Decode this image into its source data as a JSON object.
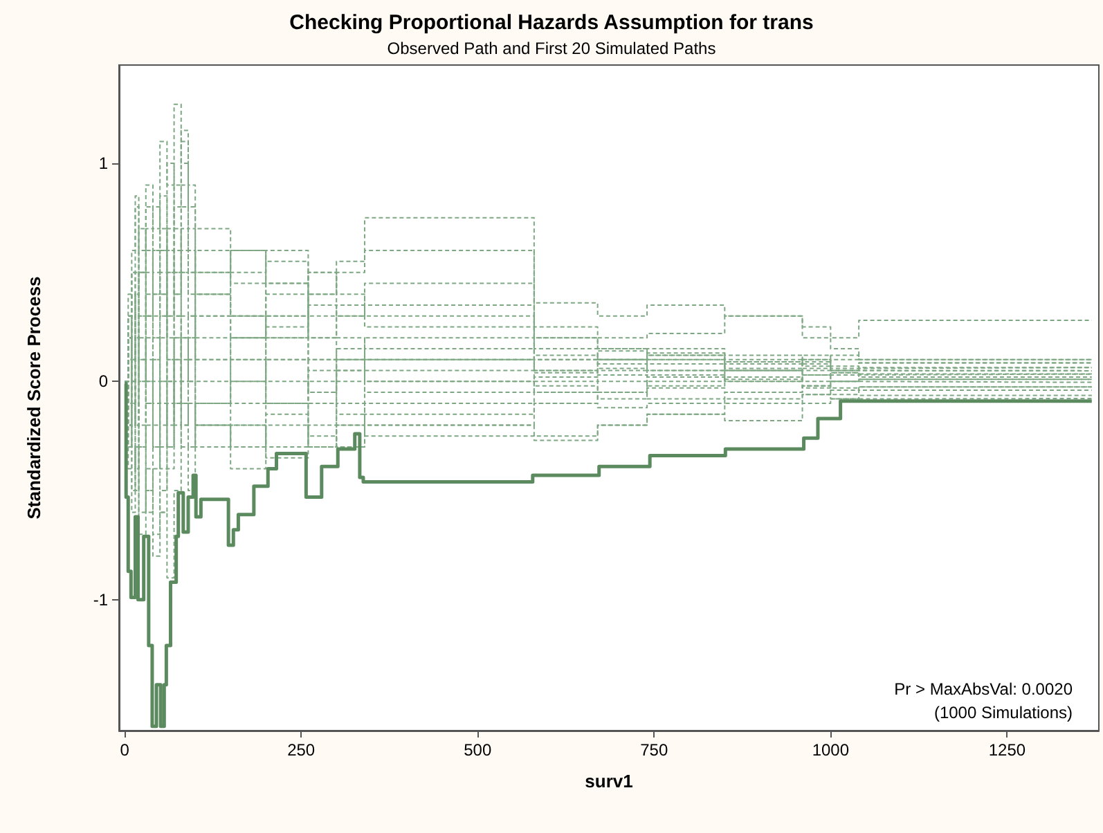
{
  "chart_data": {
    "type": "step",
    "title": "Checking Proportional Hazards Assumption for trans",
    "subtitle": "Observed Path and First 20 Simulated Paths",
    "xlabel": "surv1",
    "ylabel": "Standardized Score Process",
    "annotations": [
      "Pr > MaxAbsVal: 0.0020",
      "(1000 Simulations)"
    ],
    "x": [
      0,
      5,
      10,
      15,
      20,
      30,
      40,
      50,
      60,
      70,
      80,
      90,
      100,
      150,
      200,
      260,
      300,
      340,
      580,
      670,
      740,
      850,
      960,
      1000,
      1040,
      1370
    ],
    "series": [
      {
        "color": "#7ea883",
        "line_style": "dashed",
        "values": [
          0,
          0.3,
          0.5,
          0.8,
          0.6,
          0.9,
          0.7,
          1.1,
          0.9,
          1.27,
          1.0,
          0.6,
          0.5,
          0.6,
          0.45,
          0.5,
          0.3,
          0.45,
          0.36,
          0.3,
          0.35,
          0.3,
          0.25,
          0.2,
          0.28,
          0.28
        ]
      },
      {
        "color": "#7ea883",
        "line_style": "dashed",
        "values": [
          0,
          -0.2,
          -0.5,
          -0.3,
          -0.6,
          -0.4,
          -0.7,
          -0.5,
          -0.3,
          0.1,
          0.3,
          0.2,
          0.4,
          0.3,
          0.2,
          0.1,
          0.15,
          0.1,
          0.12,
          0.1,
          0.15,
          0.12,
          0.08,
          0.12,
          0.1,
          0.1
        ]
      },
      {
        "color": "#7ea883",
        "line_style": "dashed",
        "values": [
          0,
          0.2,
          0.4,
          0.1,
          0.3,
          0.6,
          0.4,
          0.7,
          0.5,
          0.9,
          1.15,
          0.8,
          0.3,
          0.2,
          0.3,
          0.1,
          0.05,
          0.2,
          0.1,
          0.14,
          0.1,
          0.05,
          0.09,
          0.05,
          0.085,
          0.085
        ]
      },
      {
        "color": "#7ea883",
        "line_style": "dashed",
        "values": [
          0,
          -0.3,
          -0.1,
          -0.4,
          -0.2,
          -0.5,
          -0.8,
          -0.6,
          -0.9,
          -0.5,
          -0.2,
          -0.3,
          -0.1,
          0.0,
          -0.1,
          0.05,
          0.0,
          -0.05,
          0.02,
          0.05,
          0.08,
          0.06,
          0.1,
          0.06,
          0.064,
          0.064
        ]
      },
      {
        "color": "#7ea883",
        "line_style": "dashed",
        "values": [
          0,
          0.1,
          -0.2,
          0.2,
          0.5,
          0.3,
          0.6,
          0.85,
          0.6,
          0.4,
          0.7,
          0.5,
          0.6,
          0.45,
          0.55,
          0.3,
          0.35,
          0.25,
          0.2,
          0.15,
          0.12,
          0.1,
          0.07,
          0.05,
          0.049,
          0.049
        ]
      },
      {
        "color": "#7ea883",
        "line_style": "dashed",
        "values": [
          0,
          -0.1,
          0.2,
          -0.1,
          0.1,
          -0.2,
          0.1,
          -0.3,
          -0.1,
          0.2,
          0.0,
          0.3,
          0.1,
          0.2,
          0.0,
          -0.1,
          0.1,
          0.0,
          -0.05,
          0.0,
          0.03,
          0.0,
          0.05,
          0.03,
          0.034,
          0.034
        ]
      },
      {
        "color": "#7ea883",
        "line_style": "dashed",
        "values": [
          0,
          0.4,
          0.6,
          0.85,
          0.5,
          0.7,
          0.3,
          0.5,
          0.2,
          0.4,
          0.6,
          0.4,
          0.2,
          0.1,
          0.25,
          0.4,
          0.5,
          0.6,
          0.2,
          0.15,
          0.1,
          0.05,
          0.0,
          0.04,
          0.02,
          0.02
        ]
      },
      {
        "color": "#7ea883",
        "line_style": "dashed",
        "values": [
          0,
          -0.4,
          -0.6,
          -0.3,
          -0.7,
          -0.5,
          -0.2,
          -0.4,
          0.0,
          -0.2,
          0.1,
          -0.1,
          -0.3,
          -0.2,
          -0.35,
          -0.2,
          -0.3,
          -0.15,
          -0.1,
          -0.05,
          0.0,
          0.02,
          -0.03,
          0.0,
          0.01,
          0.01
        ]
      },
      {
        "color": "#7ea883",
        "line_style": "dashed",
        "values": [
          0,
          0.2,
          0.0,
          0.3,
          0.1,
          0.4,
          0.2,
          0.0,
          0.3,
          0.6,
          0.9,
          0.5,
          0.4,
          0.6,
          0.3,
          0.5,
          0.4,
          0.3,
          0.05,
          0.1,
          0.05,
          0.0,
          -0.02,
          0.0,
          -0.004,
          -0.004
        ]
      },
      {
        "color": "#7ea883",
        "line_style": "dashed",
        "values": [
          0,
          -0.2,
          -0.4,
          -0.1,
          -0.3,
          0.0,
          -0.3,
          -0.6,
          -0.4,
          -0.1,
          -0.3,
          -0.5,
          -0.2,
          -0.4,
          -0.2,
          -0.3,
          -0.1,
          -0.2,
          -0.25,
          -0.2,
          -0.15,
          -0.1,
          -0.06,
          -0.04,
          -0.025,
          -0.025
        ]
      },
      {
        "color": "#7ea883",
        "line_style": "dashed",
        "values": [
          0,
          0.3,
          0.1,
          0.4,
          0.7,
          0.5,
          0.8,
          0.6,
          1.0,
          0.7,
          0.5,
          0.3,
          0.1,
          -0.1,
          0.1,
          -0.05,
          0.1,
          0.0,
          -0.02,
          -0.05,
          -0.08,
          -0.05,
          -0.02,
          -0.06,
          -0.04,
          -0.04
        ]
      },
      {
        "color": "#7ea883",
        "line_style": "dashed",
        "values": [
          0,
          -0.1,
          -0.3,
          -0.5,
          -0.3,
          -0.6,
          -0.4,
          -0.1,
          -0.3,
          0.0,
          -0.2,
          0.0,
          -0.2,
          -0.3,
          -0.1,
          -0.25,
          -0.3,
          -0.2,
          -0.1,
          -0.12,
          -0.1,
          -0.08,
          -0.06,
          -0.08,
          -0.064,
          -0.064
        ]
      },
      {
        "color": "#7ea883",
        "line_style": "dashed",
        "values": [
          0,
          0.1,
          0.3,
          0.5,
          0.3,
          0.1,
          0.4,
          0.6,
          0.3,
          0.5,
          0.2,
          0.0,
          -0.2,
          -0.3,
          -0.15,
          -0.3,
          -0.2,
          -0.25,
          -0.27,
          -0.2,
          -0.15,
          -0.18,
          -0.1,
          -0.08,
          -0.078,
          -0.078
        ]
      },
      {
        "color": "#7ea883",
        "line_style": "dashed",
        "values": [
          0,
          0.2,
          0.5,
          0.3,
          0.6,
          0.8,
          0.5,
          0.3,
          0.6,
          0.8,
          1.1,
          0.9,
          0.7,
          0.5,
          0.6,
          0.4,
          0.55,
          0.75,
          0.25,
          0.2,
          0.22,
          0.3,
          0.2,
          0.15,
          0.1,
          0.1
        ]
      },
      {
        "color": "#7ea883",
        "line_style": "dashed",
        "values": [
          0,
          -0.3,
          0.0,
          -0.2,
          0.1,
          -0.1,
          0.2,
          0.4,
          0.1,
          0.3,
          0.5,
          0.7,
          0.5,
          0.3,
          0.2,
          0.35,
          0.2,
          0.1,
          0.05,
          0.1,
          0.12,
          0.08,
          0.1,
          0.07,
          0.064,
          0.064
        ]
      },
      {
        "color": "#7ea883",
        "line_style": "dashed",
        "values": [
          0,
          0.1,
          -0.1,
          0.2,
          0.0,
          0.3,
          0.0,
          -0.2,
          0.1,
          -0.1,
          0.2,
          0.1,
          0.3,
          0.2,
          0.4,
          0.2,
          0.1,
          0.15,
          0.1,
          0.08,
          0.05,
          0.09,
          0.06,
          0.05,
          0.049,
          0.049
        ]
      },
      {
        "color": "#7ea883",
        "line_style": "dashed",
        "values": [
          0,
          -0.2,
          0.1,
          0.3,
          0.0,
          0.2,
          -0.1,
          0.2,
          0.5,
          0.3,
          0.0,
          0.2,
          0.0,
          0.1,
          -0.1,
          0.0,
          -0.15,
          0.05,
          0.0,
          0.03,
          -0.02,
          0.01,
          0.03,
          0.0,
          0.01,
          0.01
        ]
      },
      {
        "color": "#7ea883",
        "line_style": "dashed",
        "values": [
          0,
          0.3,
          0.0,
          -0.2,
          0.2,
          0.0,
          -0.3,
          0.0,
          -0.2,
          0.1,
          -0.1,
          -0.3,
          -0.1,
          -0.2,
          -0.3,
          -0.1,
          -0.2,
          -0.1,
          -0.05,
          -0.08,
          -0.03,
          -0.05,
          -0.02,
          -0.03,
          -0.025,
          -0.025
        ]
      },
      {
        "color": "#7ea883",
        "line_style": "dashed",
        "values": [
          0,
          0.2,
          0.4,
          0.2,
          0.5,
          0.3,
          0.6,
          0.4,
          0.7,
          0.5,
          0.8,
          0.6,
          0.4,
          0.3,
          0.45,
          0.2,
          0.3,
          0.35,
          0.15,
          0.1,
          0.13,
          0.09,
          0.12,
          0.1,
          0.085,
          0.085
        ]
      },
      {
        "color": "#7ea883",
        "line_style": "dashed",
        "values": [
          0,
          -0.1,
          0.2,
          0.0,
          -0.3,
          -0.1,
          0.1,
          0.3,
          0.0,
          0.2,
          -0.1,
          0.1,
          -0.1,
          0.0,
          0.1,
          -0.05,
          0.05,
          0.1,
          0.04,
          0.06,
          0.02,
          0.05,
          0.03,
          0.04,
          0.034,
          0.034
        ]
      },
      {
        "color": "#5b8a5f",
        "line_style": "solid",
        "x": [
          0,
          2,
          5,
          9,
          15,
          19,
          27,
          34,
          39,
          45,
          51,
          56,
          59,
          65,
          73,
          76,
          83,
          90,
          97,
          101,
          108,
          147,
          154,
          161,
          183,
          203,
          215,
          257,
          279,
          302,
          326,
          333,
          338,
          578,
          672,
          744,
          851,
          962,
          982,
          1014,
          1370
        ],
        "values": [
          -0.01,
          -0.53,
          -0.87,
          -0.99,
          -0.62,
          -1.0,
          -0.71,
          -1.21,
          -1.58,
          -1.39,
          -1.58,
          -1.39,
          -1.21,
          -0.92,
          -0.71,
          -0.51,
          -0.69,
          -0.53,
          -0.43,
          -0.62,
          -0.54,
          -0.75,
          -0.68,
          -0.61,
          -0.48,
          -0.4,
          -0.33,
          -0.53,
          -0.39,
          -0.31,
          -0.24,
          -0.44,
          -0.46,
          -0.43,
          -0.39,
          -0.34,
          -0.31,
          -0.26,
          -0.17,
          -0.09,
          -0.09
        ]
      }
    ],
    "xlim": [
      -8,
      1380
    ],
    "xticks": [
      0,
      250,
      500,
      750,
      1000,
      1250
    ],
    "ylim": [
      -1.6,
      1.45
    ],
    "yticks": [
      -1,
      0,
      1
    ],
    "grid": false,
    "marker": "none"
  }
}
